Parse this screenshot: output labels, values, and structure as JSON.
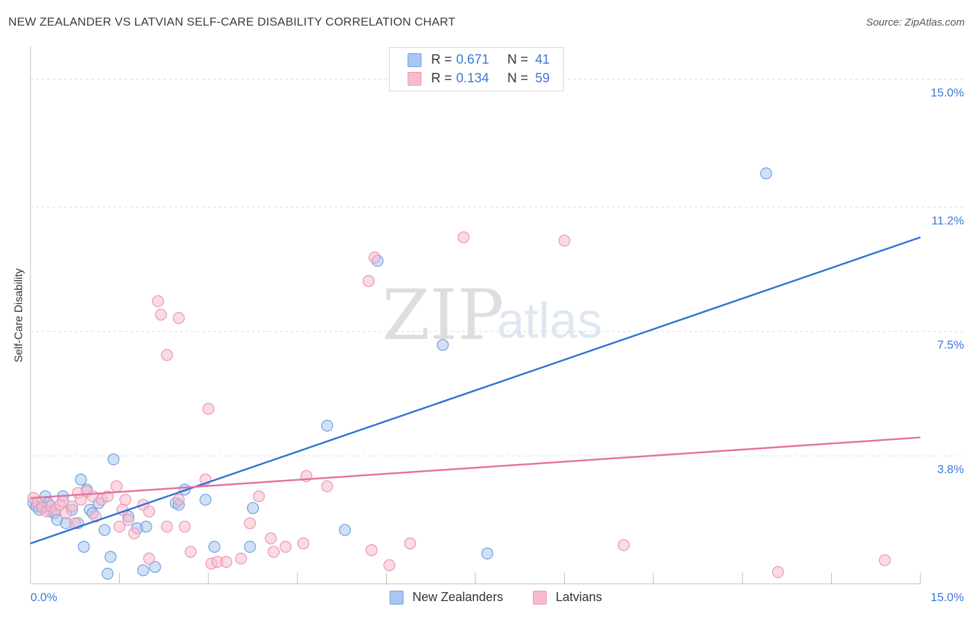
{
  "header": {
    "title": "NEW ZEALANDER VS LATVIAN SELF-CARE DISABILITY CORRELATION CHART",
    "source": "Source: ZipAtlas.com"
  },
  "watermark": {
    "zip": "ZIP",
    "atlas": "atlas"
  },
  "legend": {
    "rows": [
      {
        "r_label": "R = ",
        "r_value": "0.671",
        "n_label": "N = ",
        "n_value": "41"
      },
      {
        "r_label": "R = ",
        "r_value": "0.134",
        "n_label": "N = ",
        "n_value": "59"
      }
    ]
  },
  "bottom_legend": {
    "series1": "New Zealanders",
    "series2": "Latvians"
  },
  "colors": {
    "series1_fill": "#a9c7f0",
    "series1_stroke": "#6d9ee0",
    "series1_line": "#2f72d6",
    "series2_fill": "#f6bccd",
    "series2_stroke": "#ee93b0",
    "series2_line": "#e5719b",
    "tick_text": "#3b78d8",
    "grid": "#dcdcdc"
  },
  "chart_data": {
    "type": "scatter",
    "title": "NEW ZEALANDER VS LATVIAN SELF-CARE DISABILITY CORRELATION CHART",
    "xlabel": "",
    "ylabel": "Self-Care Disability",
    "xlim": [
      0,
      15
    ],
    "ylim": [
      0,
      15.75
    ],
    "x_tick_labels": [
      "0.0%",
      "15.0%"
    ],
    "y_ticks": [
      {
        "value": 3.8,
        "label": "3.8%"
      },
      {
        "value": 7.5,
        "label": "7.5%"
      },
      {
        "value": 11.2,
        "label": "11.2%"
      },
      {
        "value": 15.0,
        "label": "15.0%"
      }
    ],
    "grid_y_values": [
      3.8,
      7.5,
      11.2,
      15.0
    ],
    "x_minor_ticks": [
      1.5,
      3.0,
      4.5,
      6.0,
      7.5,
      9.0,
      10.5,
      12.0,
      13.5,
      15.0
    ],
    "series": [
      {
        "name": "New Zealanders",
        "r": 0.671,
        "n": 41,
        "trend": {
          "x0": 0.0,
          "y0": 1.2,
          "x1": 15.0,
          "y1": 10.3
        },
        "points": [
          [
            0.05,
            2.4
          ],
          [
            0.1,
            2.3
          ],
          [
            0.15,
            2.2
          ],
          [
            0.2,
            2.3
          ],
          [
            0.25,
            2.6
          ],
          [
            0.3,
            2.4
          ],
          [
            0.35,
            2.15
          ],
          [
            0.4,
            2.1
          ],
          [
            0.45,
            1.9
          ],
          [
            0.55,
            2.6
          ],
          [
            0.6,
            1.8
          ],
          [
            0.7,
            2.2
          ],
          [
            0.8,
            1.8
          ],
          [
            0.85,
            3.1
          ],
          [
            0.9,
            1.1
          ],
          [
            0.95,
            2.8
          ],
          [
            1.0,
            2.2
          ],
          [
            1.05,
            2.1
          ],
          [
            1.15,
            2.4
          ],
          [
            1.25,
            1.6
          ],
          [
            1.3,
            0.3
          ],
          [
            1.35,
            0.8
          ],
          [
            1.4,
            3.7
          ],
          [
            1.65,
            2.0
          ],
          [
            1.8,
            1.65
          ],
          [
            1.9,
            0.4
          ],
          [
            1.95,
            1.7
          ],
          [
            2.1,
            0.5
          ],
          [
            2.45,
            2.4
          ],
          [
            2.5,
            2.35
          ],
          [
            2.6,
            2.8
          ],
          [
            2.95,
            2.5
          ],
          [
            3.1,
            1.1
          ],
          [
            3.7,
            1.1
          ],
          [
            3.75,
            2.25
          ],
          [
            5.0,
            4.7
          ],
          [
            5.3,
            1.6
          ],
          [
            5.85,
            9.6
          ],
          [
            6.95,
            7.1
          ],
          [
            7.7,
            0.9
          ],
          [
            12.4,
            12.2
          ]
        ]
      },
      {
        "name": "Latvians",
        "r": 0.134,
        "n": 59,
        "trend": {
          "x0": 0.0,
          "y0": 2.55,
          "x1": 15.0,
          "y1": 4.35
        },
        "points": [
          [
            0.05,
            2.55
          ],
          [
            0.12,
            2.4
          ],
          [
            0.2,
            2.25
          ],
          [
            0.28,
            2.15
          ],
          [
            0.35,
            2.3
          ],
          [
            0.42,
            2.2
          ],
          [
            0.5,
            2.35
          ],
          [
            0.55,
            2.45
          ],
          [
            0.6,
            2.1
          ],
          [
            0.7,
            2.3
          ],
          [
            0.75,
            1.8
          ],
          [
            0.8,
            2.7
          ],
          [
            0.85,
            2.5
          ],
          [
            0.95,
            2.75
          ],
          [
            1.05,
            2.6
          ],
          [
            1.1,
            2.0
          ],
          [
            1.2,
            2.5
          ],
          [
            1.3,
            2.6
          ],
          [
            1.45,
            2.9
          ],
          [
            1.5,
            1.7
          ],
          [
            1.55,
            2.2
          ],
          [
            1.6,
            2.5
          ],
          [
            1.65,
            1.9
          ],
          [
            1.75,
            1.5
          ],
          [
            1.9,
            2.35
          ],
          [
            2.0,
            2.15
          ],
          [
            2.0,
            0.75
          ],
          [
            2.15,
            8.4
          ],
          [
            2.2,
            8.0
          ],
          [
            2.3,
            6.8
          ],
          [
            2.3,
            1.7
          ],
          [
            2.5,
            7.9
          ],
          [
            2.5,
            2.5
          ],
          [
            2.6,
            1.7
          ],
          [
            2.7,
            0.95
          ],
          [
            2.95,
            3.1
          ],
          [
            3.0,
            5.2
          ],
          [
            3.05,
            0.6
          ],
          [
            3.15,
            0.65
          ],
          [
            3.3,
            0.65
          ],
          [
            3.55,
            0.75
          ],
          [
            3.7,
            1.8
          ],
          [
            3.85,
            2.6
          ],
          [
            4.05,
            1.35
          ],
          [
            4.1,
            0.95
          ],
          [
            4.3,
            1.1
          ],
          [
            4.6,
            1.2
          ],
          [
            4.65,
            3.2
          ],
          [
            5.0,
            2.9
          ],
          [
            5.75,
            1.0
          ],
          [
            5.8,
            9.7
          ],
          [
            5.7,
            9.0
          ],
          [
            6.05,
            0.55
          ],
          [
            6.4,
            1.2
          ],
          [
            7.3,
            10.3
          ],
          [
            9.0,
            10.2
          ],
          [
            10.0,
            1.15
          ],
          [
            12.6,
            0.35
          ],
          [
            14.4,
            0.7
          ]
        ]
      }
    ]
  }
}
